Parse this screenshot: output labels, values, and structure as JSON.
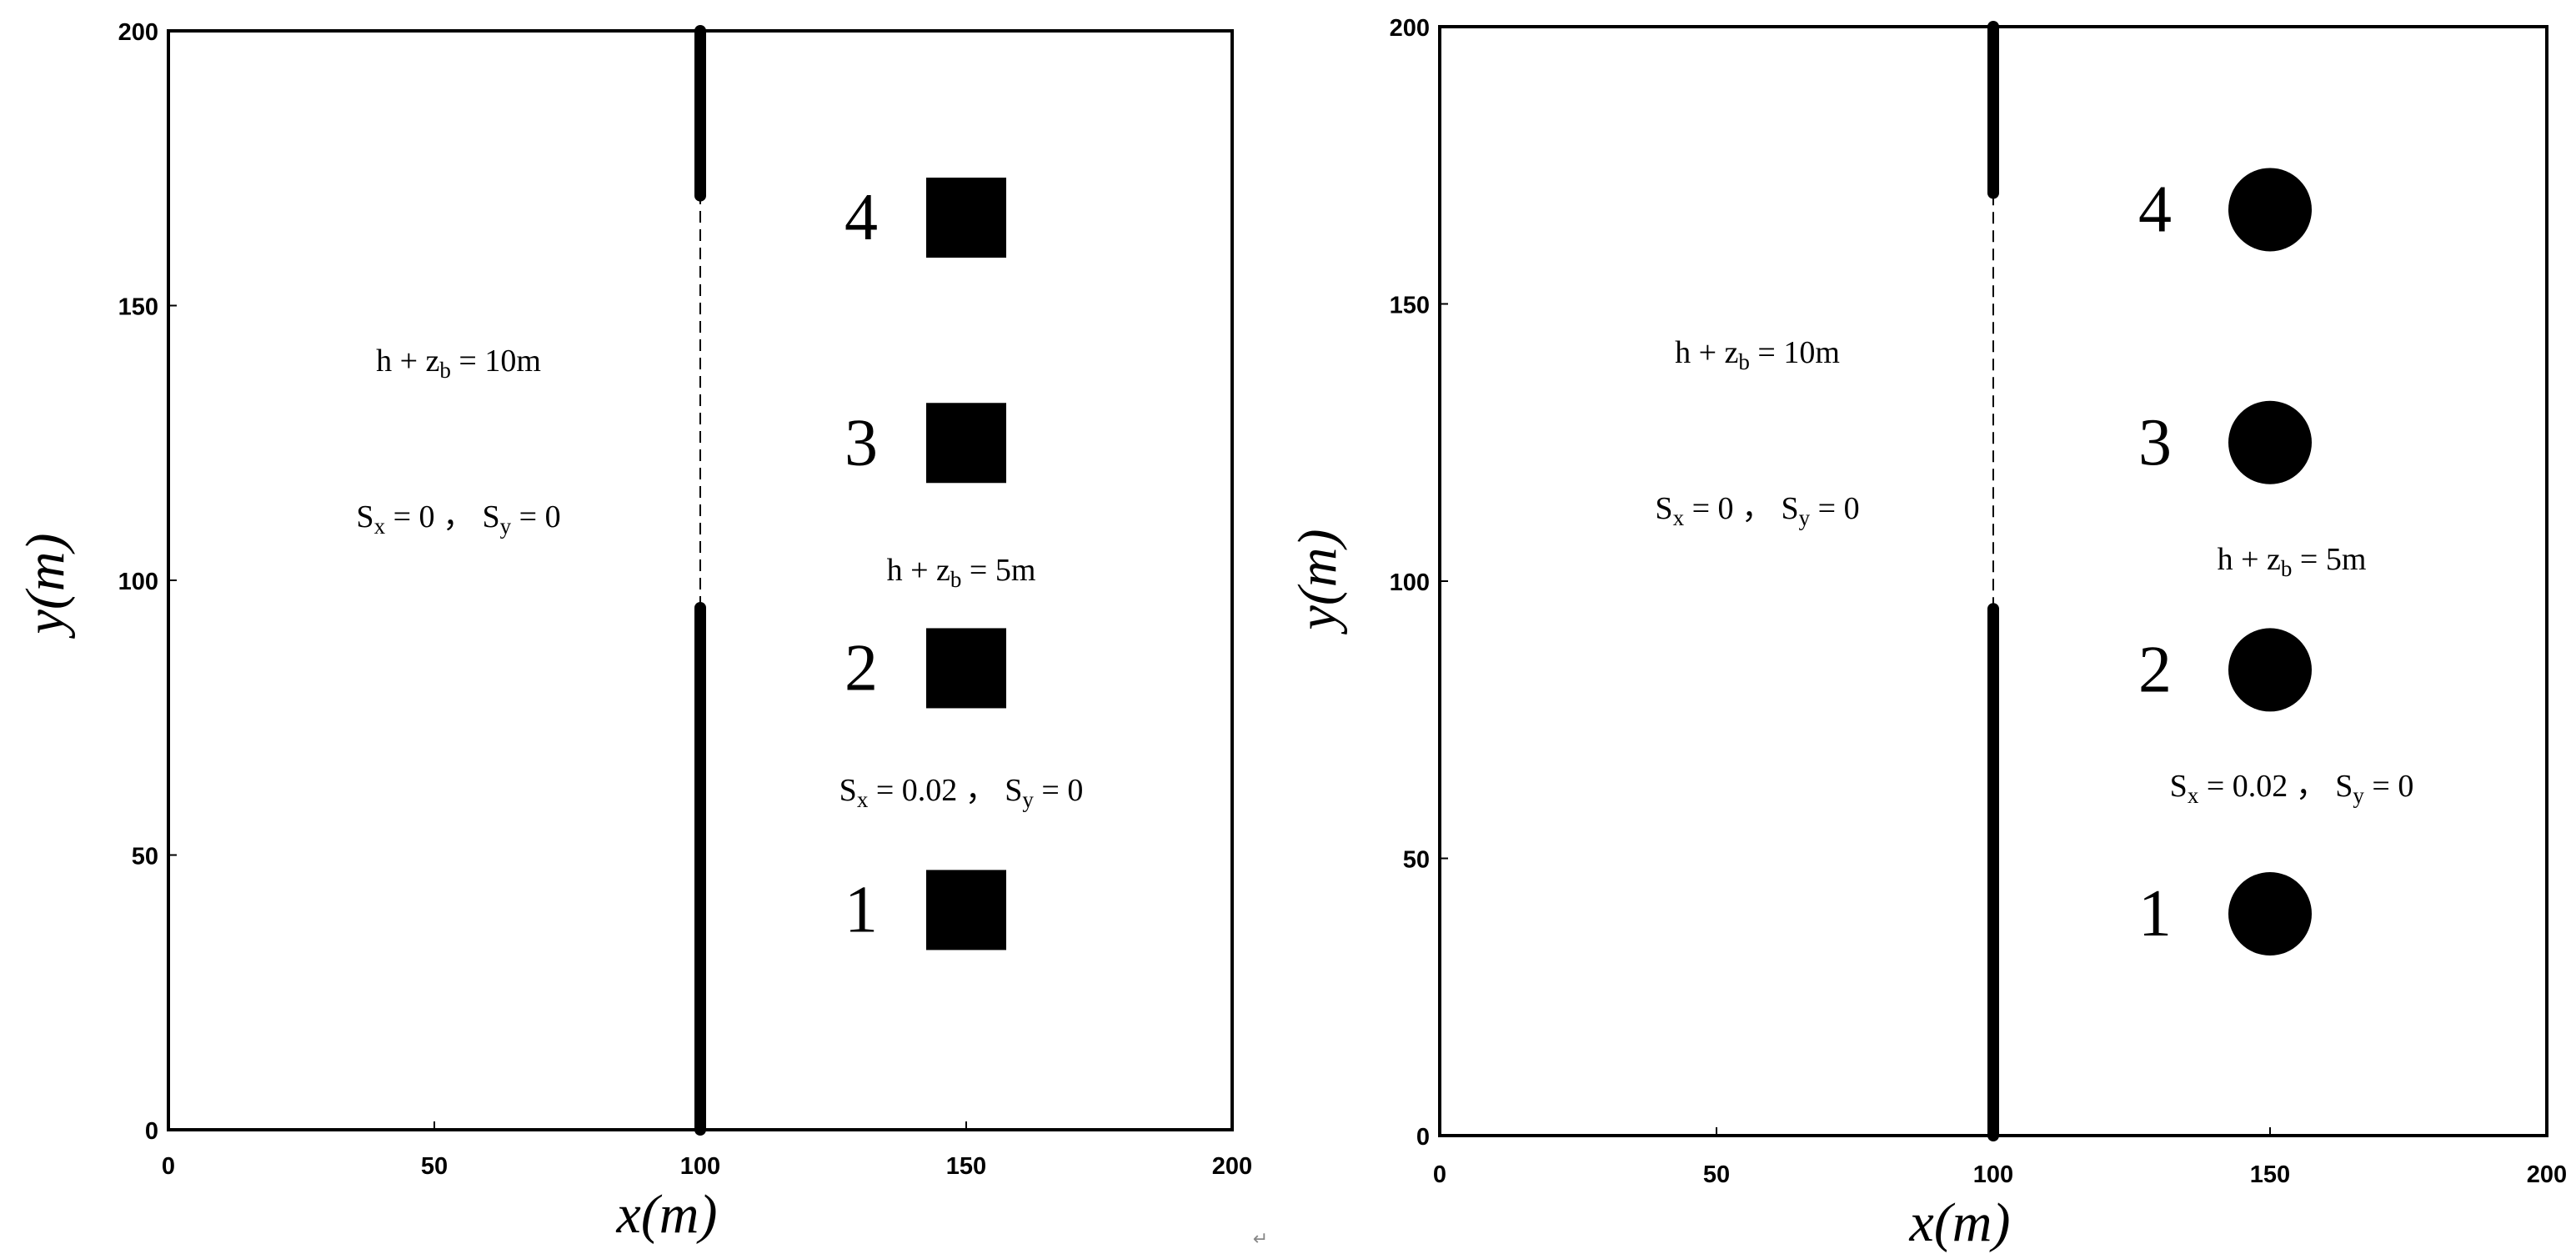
{
  "panels": [
    {
      "name": "left",
      "xlabel": "x(m)",
      "ylabel": "y(m)",
      "x_range": [
        0,
        200
      ],
      "y_range": [
        0,
        200
      ],
      "x_ticks": [
        "0",
        "50",
        "100",
        "150",
        "200"
      ],
      "y_ticks": [
        "0",
        "50",
        "100",
        "150",
        "200"
      ],
      "dam": {
        "x": 100,
        "solid_segments": [
          [
            0,
            95
          ],
          [
            170,
            200
          ]
        ],
        "breach": [
          95,
          170
        ]
      },
      "obstacle_shape": "square",
      "obstacles": [
        {
          "label": "1",
          "x": 150,
          "y": 40
        },
        {
          "label": "2",
          "x": 150,
          "y": 84
        },
        {
          "label": "3",
          "x": 150,
          "y": 125
        },
        {
          "label": "4",
          "x": 150,
          "y": 166
        }
      ],
      "upstream": {
        "depth": {
          "pre": "h + z",
          "sub": "b",
          "post": " = 10m"
        },
        "slope": {
          "a": "S",
          "a_sub": "x",
          "a_post": " = 0",
          "sep": "，",
          "b": "S",
          "b_sub": "y",
          "b_post": " = 0"
        }
      },
      "downstream": {
        "depth": {
          "pre": "h + z",
          "sub": "b",
          "post": " = 5m"
        },
        "slope": {
          "a": "S",
          "a_sub": "x",
          "a_post": " = 0.02",
          "sep": "，",
          "b": "S",
          "b_sub": "y",
          "b_post": " = 0"
        }
      }
    },
    {
      "name": "right",
      "xlabel": "x(m)",
      "ylabel": "y(m)",
      "x_range": [
        0,
        200
      ],
      "y_range": [
        0,
        200
      ],
      "x_ticks": [
        "0",
        "50",
        "100",
        "150",
        "200"
      ],
      "y_ticks": [
        "0",
        "50",
        "100",
        "150",
        "200"
      ],
      "dam": {
        "x": 100,
        "solid_segments": [
          [
            0,
            95
          ],
          [
            170,
            200
          ]
        ],
        "breach": [
          95,
          170
        ]
      },
      "obstacle_shape": "circle",
      "obstacles": [
        {
          "label": "1",
          "x": 150,
          "y": 40
        },
        {
          "label": "2",
          "x": 150,
          "y": 84
        },
        {
          "label": "3",
          "x": 150,
          "y": 125
        },
        {
          "label": "4",
          "x": 150,
          "y": 167
        }
      ],
      "upstream": {
        "depth": {
          "pre": "h + z",
          "sub": "b",
          "post": " = 10m"
        },
        "slope": {
          "a": "S",
          "a_sub": "x",
          "a_post": " = 0",
          "sep": "，",
          "b": "S",
          "b_sub": "y",
          "b_post": " = 0"
        }
      },
      "downstream": {
        "depth": {
          "pre": "h + z",
          "sub": "b",
          "post": " = 5m"
        },
        "slope": {
          "a": "S",
          "a_sub": "x",
          "a_post": " = 0.02",
          "sep": "，",
          "b": "S",
          "b_sub": "y",
          "b_post": " = 0"
        }
      }
    }
  ],
  "return_mark": "↵",
  "colors": {
    "ink": "#000000",
    "background": "#ffffff"
  }
}
